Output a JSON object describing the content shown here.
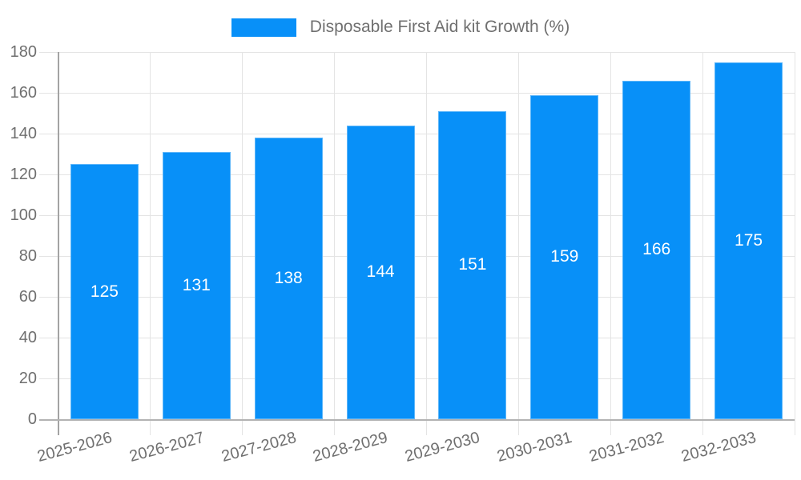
{
  "legend": {
    "label": "Disposable First Aid kit Growth (%)"
  },
  "chart_data": {
    "type": "bar",
    "title": "",
    "xlabel": "",
    "ylabel": "",
    "categories": [
      "2025-2026",
      "2026-2027",
      "2027-2028",
      "2028-2029",
      "2029-2030",
      "2030-2031",
      "2031-2032",
      "2032-2033"
    ],
    "series": [
      {
        "name": "Disposable First Aid kit Growth (%)",
        "values": [
          125,
          131,
          138,
          144,
          151,
          159,
          166,
          175
        ]
      }
    ],
    "value_labels": [
      "125",
      "131",
      "138",
      "144",
      "151",
      "159",
      "166",
      "175"
    ],
    "ytick_labels": [
      "0",
      "20",
      "40",
      "60",
      "80",
      "100",
      "120",
      "140",
      "160",
      "180"
    ],
    "ylim": [
      0,
      180
    ],
    "ytick_step": 20,
    "grid": true,
    "legend_position": "top-center",
    "colors": {
      "bar_fill": "#0890f8",
      "bar_edge": "#5eb6f9",
      "value_label_text": "#ffffff",
      "tick_text": "#6f6f6f",
      "legend_text": "#707070",
      "gridline": "#e4e4e4",
      "y_axis_line": "#a3a3a3",
      "x_axis_line": "#b3b3b3",
      "background": "#ffffff"
    }
  }
}
